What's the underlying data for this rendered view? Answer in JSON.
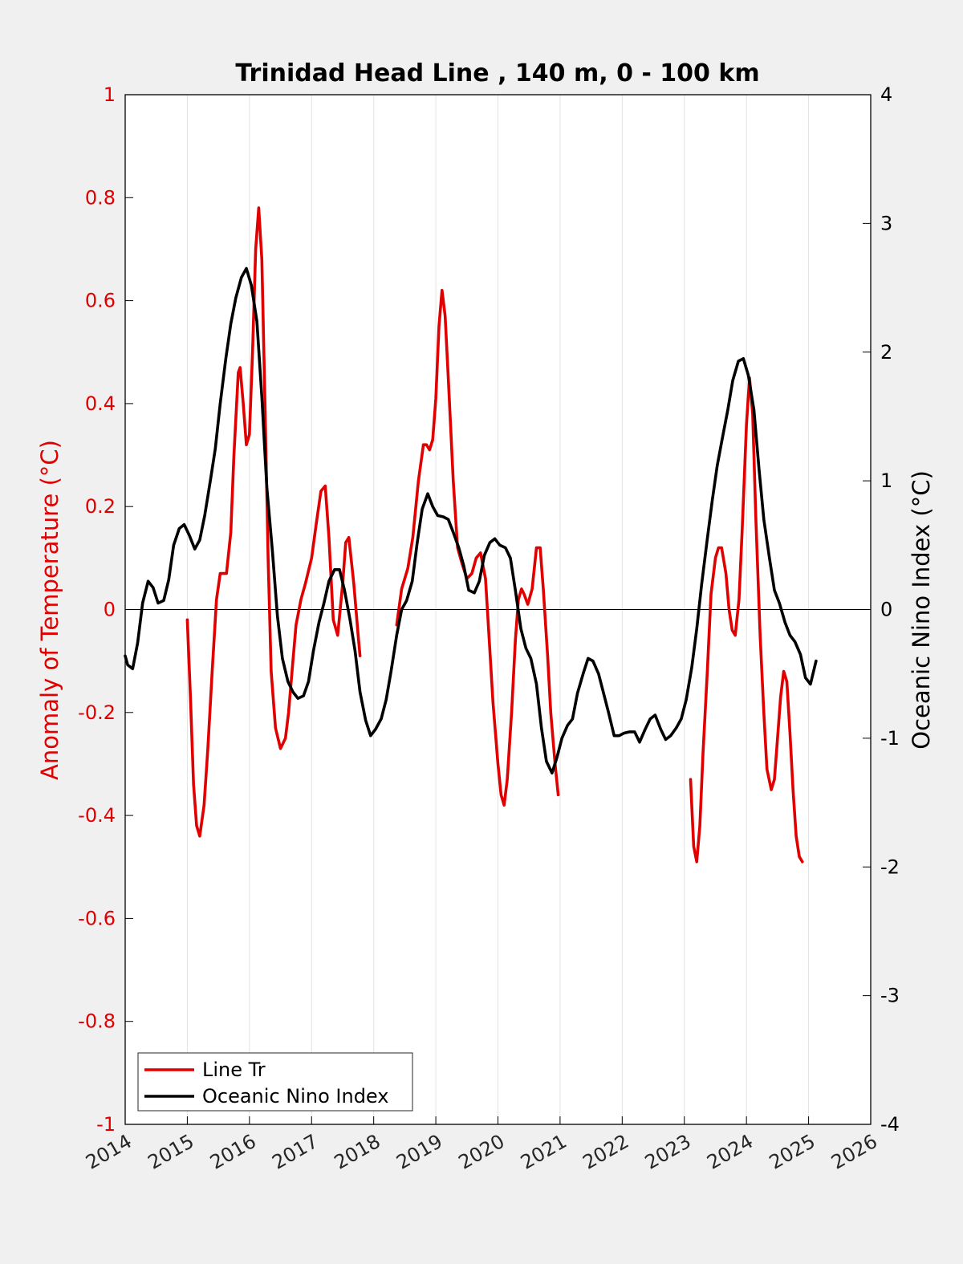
{
  "chart_data": {
    "type": "line",
    "title": "Trinidad Head Line , 140 m, 0 - 100 km",
    "xlabel": "",
    "xlim": [
      2014,
      2026
    ],
    "x_ticks": [
      "2014",
      "2015",
      "2016",
      "2017",
      "2018",
      "2019",
      "2020",
      "2021",
      "2022",
      "2023",
      "2024",
      "2025",
      "2026"
    ],
    "ylabel_left": "Anomaly of Temperature (°C)",
    "ylim_left": [
      -1,
      1
    ],
    "y_ticks_left": [
      "-1",
      "-0.8",
      "-0.6",
      "-0.4",
      "-0.2",
      "0",
      "0.2",
      "0.4",
      "0.6",
      "0.8",
      "1"
    ],
    "ylabel_right": "Oceanic Nino Index (°C)",
    "ylim_right": [
      -4,
      4
    ],
    "y_ticks_right": [
      "-4",
      "-3",
      "-2",
      "-1",
      "0",
      "1",
      "2",
      "3",
      "4"
    ],
    "grid": "vertical",
    "zero_line": true,
    "legend_position": "bottom-left",
    "colors": {
      "line_tr": "#e00000",
      "oni": "#000000"
    },
    "series": [
      {
        "name": "Line Tr",
        "axis": "left",
        "segments": [
          [
            [
              2015.0,
              -0.02
            ],
            [
              2015.05,
              -0.17
            ],
            [
              2015.1,
              -0.34
            ],
            [
              2015.15,
              -0.42
            ],
            [
              2015.2,
              -0.44
            ],
            [
              2015.27,
              -0.38
            ],
            [
              2015.33,
              -0.27
            ],
            [
              2015.4,
              -0.12
            ],
            [
              2015.47,
              0.02
            ],
            [
              2015.53,
              0.07
            ],
            [
              2015.58,
              0.07
            ],
            [
              2015.63,
              0.07
            ],
            [
              2015.7,
              0.15
            ],
            [
              2015.75,
              0.3
            ],
            [
              2015.82,
              0.46
            ],
            [
              2015.85,
              0.47
            ],
            [
              2015.9,
              0.4
            ],
            [
              2015.95,
              0.32
            ],
            [
              2016.0,
              0.34
            ],
            [
              2016.05,
              0.5
            ],
            [
              2016.1,
              0.7
            ],
            [
              2016.15,
              0.78
            ],
            [
              2016.2,
              0.68
            ],
            [
              2016.25,
              0.4
            ],
            [
              2016.3,
              0.1
            ],
            [
              2016.35,
              -0.12
            ],
            [
              2016.42,
              -0.23
            ],
            [
              2016.5,
              -0.27
            ],
            [
              2016.58,
              -0.25
            ],
            [
              2016.63,
              -0.2
            ],
            [
              2016.7,
              -0.1
            ],
            [
              2016.75,
              -0.03
            ],
            [
              2016.83,
              0.02
            ],
            [
              2016.9,
              0.05
            ],
            [
              2017.0,
              0.1
            ],
            [
              2017.08,
              0.17
            ],
            [
              2017.15,
              0.23
            ],
            [
              2017.22,
              0.24
            ],
            [
              2017.28,
              0.14
            ],
            [
              2017.35,
              -0.02
            ],
            [
              2017.42,
              -0.05
            ],
            [
              2017.5,
              0.05
            ],
            [
              2017.55,
              0.13
            ],
            [
              2017.6,
              0.14
            ],
            [
              2017.68,
              0.05
            ],
            [
              2017.75,
              -0.05
            ],
            [
              2017.78,
              -0.09
            ]
          ],
          [
            [
              2018.37,
              -0.03
            ],
            [
              2018.45,
              0.04
            ],
            [
              2018.55,
              0.08
            ],
            [
              2018.63,
              0.14
            ],
            [
              2018.72,
              0.25
            ],
            [
              2018.8,
              0.32
            ],
            [
              2018.85,
              0.32
            ],
            [
              2018.9,
              0.31
            ],
            [
              2018.95,
              0.33
            ],
            [
              2019.0,
              0.41
            ],
            [
              2019.05,
              0.55
            ],
            [
              2019.1,
              0.62
            ],
            [
              2019.15,
              0.57
            ],
            [
              2019.2,
              0.45
            ],
            [
              2019.28,
              0.25
            ],
            [
              2019.35,
              0.12
            ],
            [
              2019.42,
              0.09
            ],
            [
              2019.5,
              0.06
            ],
            [
              2019.58,
              0.07
            ],
            [
              2019.65,
              0.1
            ],
            [
              2019.72,
              0.11
            ],
            [
              2019.8,
              0.06
            ],
            [
              2019.85,
              -0.04
            ],
            [
              2019.92,
              -0.18
            ],
            [
              2020.0,
              -0.3
            ],
            [
              2020.05,
              -0.36
            ],
            [
              2020.1,
              -0.38
            ],
            [
              2020.15,
              -0.33
            ],
            [
              2020.22,
              -0.2
            ],
            [
              2020.28,
              -0.06
            ],
            [
              2020.33,
              0.02
            ],
            [
              2020.38,
              0.04
            ],
            [
              2020.42,
              0.03
            ],
            [
              2020.48,
              0.01
            ],
            [
              2020.55,
              0.04
            ],
            [
              2020.62,
              0.12
            ],
            [
              2020.68,
              0.12
            ],
            [
              2020.73,
              0.04
            ],
            [
              2020.8,
              -0.09
            ],
            [
              2020.85,
              -0.2
            ],
            [
              2020.92,
              -0.3
            ],
            [
              2020.97,
              -0.36
            ]
          ],
          [
            [
              2023.1,
              -0.33
            ],
            [
              2023.15,
              -0.46
            ],
            [
              2023.2,
              -0.49
            ],
            [
              2023.25,
              -0.42
            ],
            [
              2023.3,
              -0.28
            ],
            [
              2023.37,
              -0.12
            ],
            [
              2023.43,
              0.03
            ],
            [
              2023.5,
              0.1
            ],
            [
              2023.55,
              0.12
            ],
            [
              2023.6,
              0.12
            ],
            [
              2023.67,
              0.07
            ],
            [
              2023.72,
              0.0
            ],
            [
              2023.77,
              -0.04
            ],
            [
              2023.82,
              -0.05
            ],
            [
              2023.88,
              0.02
            ],
            [
              2023.93,
              0.15
            ],
            [
              2024.0,
              0.36
            ],
            [
              2024.05,
              0.45
            ],
            [
              2024.1,
              0.38
            ],
            [
              2024.15,
              0.18
            ],
            [
              2024.22,
              -0.05
            ],
            [
              2024.28,
              -0.2
            ],
            [
              2024.33,
              -0.31
            ],
            [
              2024.4,
              -0.35
            ],
            [
              2024.45,
              -0.33
            ],
            [
              2024.5,
              -0.25
            ],
            [
              2024.55,
              -0.17
            ],
            [
              2024.6,
              -0.12
            ],
            [
              2024.65,
              -0.14
            ],
            [
              2024.7,
              -0.24
            ],
            [
              2024.75,
              -0.35
            ],
            [
              2024.8,
              -0.44
            ],
            [
              2024.85,
              -0.48
            ],
            [
              2024.9,
              -0.49
            ]
          ]
        ]
      },
      {
        "name": "Oceanic Nino Index",
        "axis": "right",
        "segments": [
          [
            [
              2014.0,
              -0.36
            ],
            [
              2014.04,
              -0.43
            ],
            [
              2014.12,
              -0.46
            ],
            [
              2014.2,
              -0.26
            ],
            [
              2014.28,
              0.05
            ],
            [
              2014.37,
              0.22
            ],
            [
              2014.45,
              0.17
            ],
            [
              2014.53,
              0.05
            ],
            [
              2014.62,
              0.07
            ],
            [
              2014.7,
              0.23
            ],
            [
              2014.78,
              0.5
            ],
            [
              2014.87,
              0.63
            ],
            [
              2014.95,
              0.66
            ],
            [
              2015.03,
              0.58
            ],
            [
              2015.12,
              0.47
            ],
            [
              2015.2,
              0.54
            ],
            [
              2015.28,
              0.73
            ],
            [
              2015.37,
              1.0
            ],
            [
              2015.45,
              1.25
            ],
            [
              2015.53,
              1.6
            ],
            [
              2015.62,
              1.95
            ],
            [
              2015.7,
              2.22
            ],
            [
              2015.78,
              2.42
            ],
            [
              2015.87,
              2.58
            ],
            [
              2015.95,
              2.65
            ],
            [
              2016.03,
              2.52
            ],
            [
              2016.12,
              2.24
            ],
            [
              2016.2,
              1.65
            ],
            [
              2016.28,
              0.95
            ],
            [
              2016.37,
              0.45
            ],
            [
              2016.45,
              -0.05
            ],
            [
              2016.53,
              -0.38
            ],
            [
              2016.62,
              -0.56
            ],
            [
              2016.7,
              -0.64
            ],
            [
              2016.78,
              -0.69
            ],
            [
              2016.87,
              -0.67
            ],
            [
              2016.95,
              -0.56
            ],
            [
              2017.03,
              -0.32
            ],
            [
              2017.12,
              -0.1
            ],
            [
              2017.2,
              0.05
            ],
            [
              2017.28,
              0.22
            ],
            [
              2017.37,
              0.31
            ],
            [
              2017.45,
              0.31
            ],
            [
              2017.53,
              0.15
            ],
            [
              2017.62,
              -0.08
            ],
            [
              2017.7,
              -0.32
            ],
            [
              2017.78,
              -0.64
            ],
            [
              2017.87,
              -0.86
            ],
            [
              2017.95,
              -0.98
            ],
            [
              2018.03,
              -0.93
            ],
            [
              2018.12,
              -0.85
            ],
            [
              2018.2,
              -0.7
            ],
            [
              2018.28,
              -0.48
            ],
            [
              2018.37,
              -0.2
            ],
            [
              2018.45,
              0.0
            ],
            [
              2018.53,
              0.07
            ],
            [
              2018.62,
              0.22
            ],
            [
              2018.7,
              0.52
            ],
            [
              2018.78,
              0.78
            ],
            [
              2018.87,
              0.9
            ],
            [
              2018.95,
              0.8
            ],
            [
              2019.03,
              0.73
            ],
            [
              2019.12,
              0.72
            ],
            [
              2019.2,
              0.7
            ],
            [
              2019.28,
              0.6
            ],
            [
              2019.37,
              0.48
            ],
            [
              2019.45,
              0.34
            ],
            [
              2019.53,
              0.15
            ],
            [
              2019.62,
              0.13
            ],
            [
              2019.7,
              0.22
            ],
            [
              2019.78,
              0.42
            ],
            [
              2019.87,
              0.52
            ],
            [
              2019.95,
              0.55
            ],
            [
              2020.03,
              0.5
            ],
            [
              2020.12,
              0.48
            ],
            [
              2020.2,
              0.4
            ],
            [
              2020.28,
              0.15
            ],
            [
              2020.37,
              -0.15
            ],
            [
              2020.45,
              -0.3
            ],
            [
              2020.53,
              -0.38
            ],
            [
              2020.62,
              -0.58
            ],
            [
              2020.7,
              -0.92
            ],
            [
              2020.78,
              -1.18
            ],
            [
              2020.87,
              -1.27
            ],
            [
              2020.95,
              -1.15
            ],
            [
              2021.03,
              -1.0
            ],
            [
              2021.12,
              -0.9
            ],
            [
              2021.2,
              -0.85
            ],
            [
              2021.28,
              -0.65
            ],
            [
              2021.37,
              -0.5
            ],
            [
              2021.45,
              -0.38
            ],
            [
              2021.53,
              -0.4
            ],
            [
              2021.62,
              -0.5
            ],
            [
              2021.7,
              -0.65
            ],
            [
              2021.78,
              -0.8
            ],
            [
              2021.87,
              -0.98
            ],
            [
              2021.95,
              -0.98
            ],
            [
              2022.03,
              -0.96
            ],
            [
              2022.12,
              -0.95
            ],
            [
              2022.2,
              -0.95
            ],
            [
              2022.28,
              -1.03
            ],
            [
              2022.37,
              -0.93
            ],
            [
              2022.45,
              -0.85
            ],
            [
              2022.53,
              -0.82
            ],
            [
              2022.62,
              -0.93
            ],
            [
              2022.7,
              -1.01
            ],
            [
              2022.78,
              -0.98
            ],
            [
              2022.87,
              -0.92
            ],
            [
              2022.95,
              -0.85
            ],
            [
              2023.03,
              -0.7
            ],
            [
              2023.12,
              -0.45
            ],
            [
              2023.2,
              -0.15
            ],
            [
              2023.28,
              0.2
            ],
            [
              2023.37,
              0.55
            ],
            [
              2023.45,
              0.85
            ],
            [
              2023.53,
              1.12
            ],
            [
              2023.62,
              1.35
            ],
            [
              2023.7,
              1.55
            ],
            [
              2023.78,
              1.78
            ],
            [
              2023.87,
              1.93
            ],
            [
              2023.95,
              1.95
            ],
            [
              2024.03,
              1.82
            ],
            [
              2024.12,
              1.55
            ],
            [
              2024.2,
              1.1
            ],
            [
              2024.28,
              0.7
            ],
            [
              2024.37,
              0.4
            ],
            [
              2024.45,
              0.15
            ],
            [
              2024.53,
              0.05
            ],
            [
              2024.62,
              -0.1
            ],
            [
              2024.7,
              -0.2
            ],
            [
              2024.78,
              -0.25
            ],
            [
              2024.87,
              -0.35
            ],
            [
              2024.95,
              -0.53
            ],
            [
              2025.03,
              -0.58
            ],
            [
              2025.12,
              -0.4
            ]
          ]
        ]
      }
    ],
    "legend": [
      "Line Tr",
      "Oceanic Nino Index"
    ]
  }
}
